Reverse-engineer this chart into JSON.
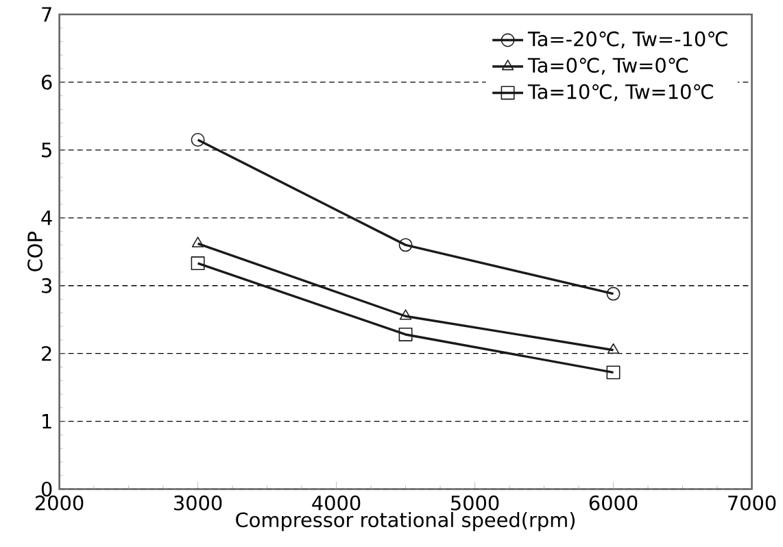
{
  "chart_data": {
    "type": "line",
    "xlabel": "Compressor rotational speed(rpm)",
    "ylabel": "COP",
    "x": [
      3000,
      4500,
      6000
    ],
    "series": [
      {
        "name": "Ta=-20℃, Tw=-10℃",
        "color": "#1a1a1a",
        "marker": "circle",
        "values": [
          5.15,
          3.6,
          2.88
        ]
      },
      {
        "name": "Ta=0℃, Tw=0℃",
        "color": "#1a1a1a",
        "marker": "triangle",
        "values": [
          3.62,
          2.55,
          2.05
        ]
      },
      {
        "name": "Ta=10℃, Tw=10℃",
        "color": "#1a1a1a",
        "marker": "square",
        "values": [
          3.33,
          2.28,
          1.72
        ]
      }
    ],
    "xlim": [
      2000,
      7000
    ],
    "xticks": [
      2000,
      3000,
      4000,
      5000,
      6000,
      7000
    ],
    "ylim": [
      0,
      7
    ],
    "yticks": [
      0,
      1,
      2,
      3,
      4,
      5,
      6,
      7
    ],
    "grid": "y",
    "legend": "top right",
    "line_style": "solid"
  }
}
